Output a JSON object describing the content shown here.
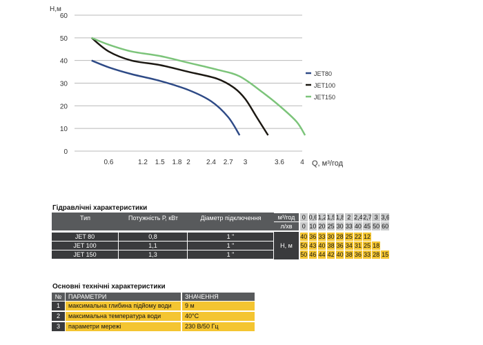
{
  "chart_data": {
    "type": "line",
    "ylabel": "H,м",
    "xlabel": "Q, м³/год",
    "xlim": [
      0,
      4
    ],
    "ylim": [
      0,
      60
    ],
    "x_ticks": [
      "0.6",
      "1.2",
      "1.5",
      "1.8",
      "2",
      "2.4",
      "2.7",
      "3",
      "3.6",
      "4"
    ],
    "y_ticks": [
      "0",
      "10",
      "20",
      "30",
      "40",
      "50",
      "60"
    ],
    "grid": true,
    "legend_position": "right",
    "series": [
      {
        "name": "JET80",
        "color": "#2e4a86",
        "x": [
          0.3,
          0.6,
          1.0,
          1.5,
          2.0,
          2.4,
          2.7,
          2.9
        ],
        "y": [
          40,
          37,
          34,
          31,
          27,
          22,
          15,
          7
        ]
      },
      {
        "name": "JET100",
        "color": "#1c1812",
        "x": [
          0.3,
          0.6,
          1.0,
          1.5,
          2.0,
          2.5,
          2.8,
          3.0,
          3.2,
          3.4
        ],
        "y": [
          50,
          44,
          40,
          38,
          35,
          32,
          28,
          23,
          15,
          7
        ]
      },
      {
        "name": "JET150",
        "color": "#7cc47a",
        "x": [
          0.3,
          0.6,
          1.0,
          1.5,
          2.0,
          2.5,
          2.9,
          3.3,
          3.6,
          3.9,
          4.05
        ],
        "y": [
          50,
          47,
          44,
          42,
          39,
          36,
          33,
          26,
          20,
          13,
          7
        ]
      }
    ]
  },
  "hydraulic": {
    "title": "Гідравлічні характеристики",
    "headers": {
      "type": "Тип",
      "power": "Потужність  Р, кВт",
      "connection": "Діаметр підключення"
    },
    "flow_unit_m3": "м³/год",
    "flow_unit_l": "л/хв",
    "head_label": "Н, м",
    "flow_m3": [
      "0",
      "0,6",
      "1,2",
      "1,5",
      "1,8",
      "2",
      "2,4",
      "2,7",
      "3",
      "3,6"
    ],
    "flow_l": [
      "0",
      "10",
      "20",
      "25",
      "30",
      "33",
      "40",
      "45",
      "50",
      "60"
    ],
    "rows": [
      {
        "type": "JET 80",
        "power": "0,8",
        "connection": "1 \"",
        "heads": [
          "40",
          "36",
          "33",
          "30",
          "28",
          "25",
          "22",
          "12",
          "",
          ""
        ]
      },
      {
        "type": "JET 100",
        "power": "1,1",
        "connection": "1 \"",
        "heads": [
          "50",
          "43",
          "40",
          "38",
          "36",
          "34",
          "31",
          "25",
          "18",
          ""
        ]
      },
      {
        "type": "JET 150",
        "power": "1,3",
        "connection": "1 \"",
        "heads": [
          "50",
          "46",
          "44",
          "42",
          "40",
          "38",
          "36",
          "33",
          "28",
          "15"
        ]
      }
    ]
  },
  "specs": {
    "title": "Основні технічні характеристики",
    "headers": {
      "num": "№",
      "param": "ПАРАМЕТРИ",
      "value": "ЗНАЧЕННЯ"
    },
    "rows": [
      {
        "num": "1",
        "param": "максимальна глибина підйому води",
        "value": "9 м"
      },
      {
        "num": "2",
        "param": "максимальна температура води",
        "value": "40°C"
      },
      {
        "num": "3",
        "param": "параметри мережі",
        "value": "230 В/50 Гц"
      }
    ]
  }
}
